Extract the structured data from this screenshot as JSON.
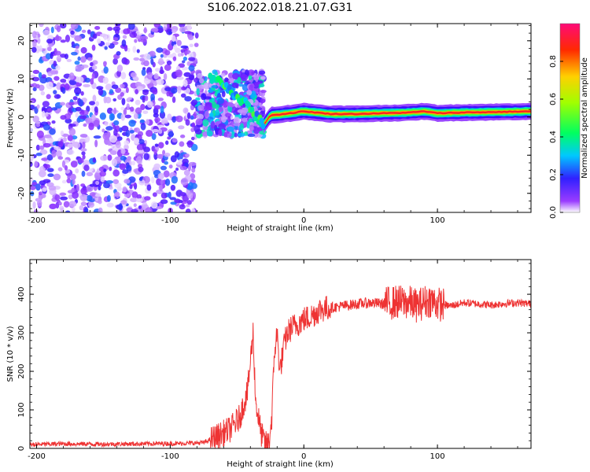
{
  "title": "S106.2022.018.21.07.G31",
  "chart_data": [
    {
      "type": "heatmap",
      "xlabel": "Height of straight line (km)",
      "ylabel": "Frequency (Hz)",
      "xlim": [
        -205,
        170
      ],
      "ylim": [
        -25,
        24.5
      ],
      "xticks": [
        -200,
        -100,
        0,
        100
      ],
      "xtick_labels": [
        "-200",
        "-100",
        "0",
        "100"
      ],
      "yticks": [
        -20,
        -10,
        0,
        10,
        20
      ],
      "ytick_labels": [
        "-20",
        "-10",
        "0",
        "10",
        "20"
      ],
      "colorbar": {
        "label": "Normalized spectral amplitude",
        "range": [
          0,
          1
        ],
        "ticks": [
          0.0,
          0.2,
          0.4,
          0.6,
          0.8
        ],
        "tick_labels": [
          "0.0",
          "0.2",
          "0.4",
          "0.6",
          "0.8"
        ],
        "colormap": [
          "#ffffff",
          "#7f00ff",
          "#0000ff",
          "#00ffff",
          "#00ff00",
          "#ffff00",
          "#ff0000",
          "#ff0080"
        ]
      },
      "regions": [
        {
          "x": [
            -205,
            -80
          ],
          "freq": [
            -25,
            24.5
          ],
          "amplitude": 0.12
        },
        {
          "x": [
            -80,
            -30
          ],
          "freq": [
            -5,
            12
          ],
          "amplitude": 0.3
        },
        {
          "x": [
            -30,
            170
          ],
          "freq_center": 1.0,
          "amplitude": 0.85
        }
      ],
      "ridge": {
        "x": [
          -70,
          -60,
          -55,
          -50,
          -45,
          -40,
          -35,
          -30,
          -25,
          -20,
          -10,
          0,
          20,
          40,
          60,
          80,
          90,
          100,
          120,
          140,
          170
        ],
        "freq": [
          10,
          9,
          7,
          5,
          4,
          2,
          0,
          -2,
          0.5,
          0.6,
          1.0,
          1.5,
          0.8,
          0.8,
          1.0,
          1.2,
          1.5,
          1.0,
          1.2,
          1.3,
          1.5
        ]
      }
    },
    {
      "type": "line",
      "xlabel": "Height of straight line (km)",
      "ylabel": "SNR (10 * v/v)",
      "xlim": [
        -205,
        170
      ],
      "ylim": [
        0,
        490
      ],
      "xticks": [
        -200,
        -100,
        0,
        100
      ],
      "xtick_labels": [
        "-200",
        "-100",
        "0",
        "100"
      ],
      "yticks": [
        0,
        100,
        200,
        300,
        400
      ],
      "ytick_labels": [
        "0",
        "100",
        "200",
        "300",
        "400"
      ],
      "color": "#ee3333",
      "series": [
        {
          "x": [
            -205,
            -180,
            -150,
            -120,
            -90,
            -75,
            -65,
            -55,
            -48,
            -42,
            -38,
            -36,
            -34,
            -32,
            -30,
            -28,
            -26,
            -24,
            -22,
            -20,
            -18,
            -16,
            -14,
            -12,
            -10,
            -6,
            -2,
            0,
            4,
            8,
            12,
            20,
            30,
            40,
            50,
            60,
            70,
            80,
            85,
            90,
            95,
            100,
            110,
            120,
            130,
            140,
            150,
            160,
            170
          ],
          "y": [
            10,
            12,
            11,
            12,
            13,
            15,
            30,
            50,
            80,
            150,
            300,
            120,
            80,
            40,
            20,
            10,
            15,
            80,
            250,
            300,
            200,
            240,
            280,
            300,
            310,
            320,
            330,
            335,
            340,
            350,
            360,
            365,
            370,
            375,
            378,
            375,
            380,
            378,
            370,
            380,
            385,
            375,
            370,
            378,
            375,
            372,
            376,
            378,
            375
          ]
        }
      ]
    }
  ]
}
